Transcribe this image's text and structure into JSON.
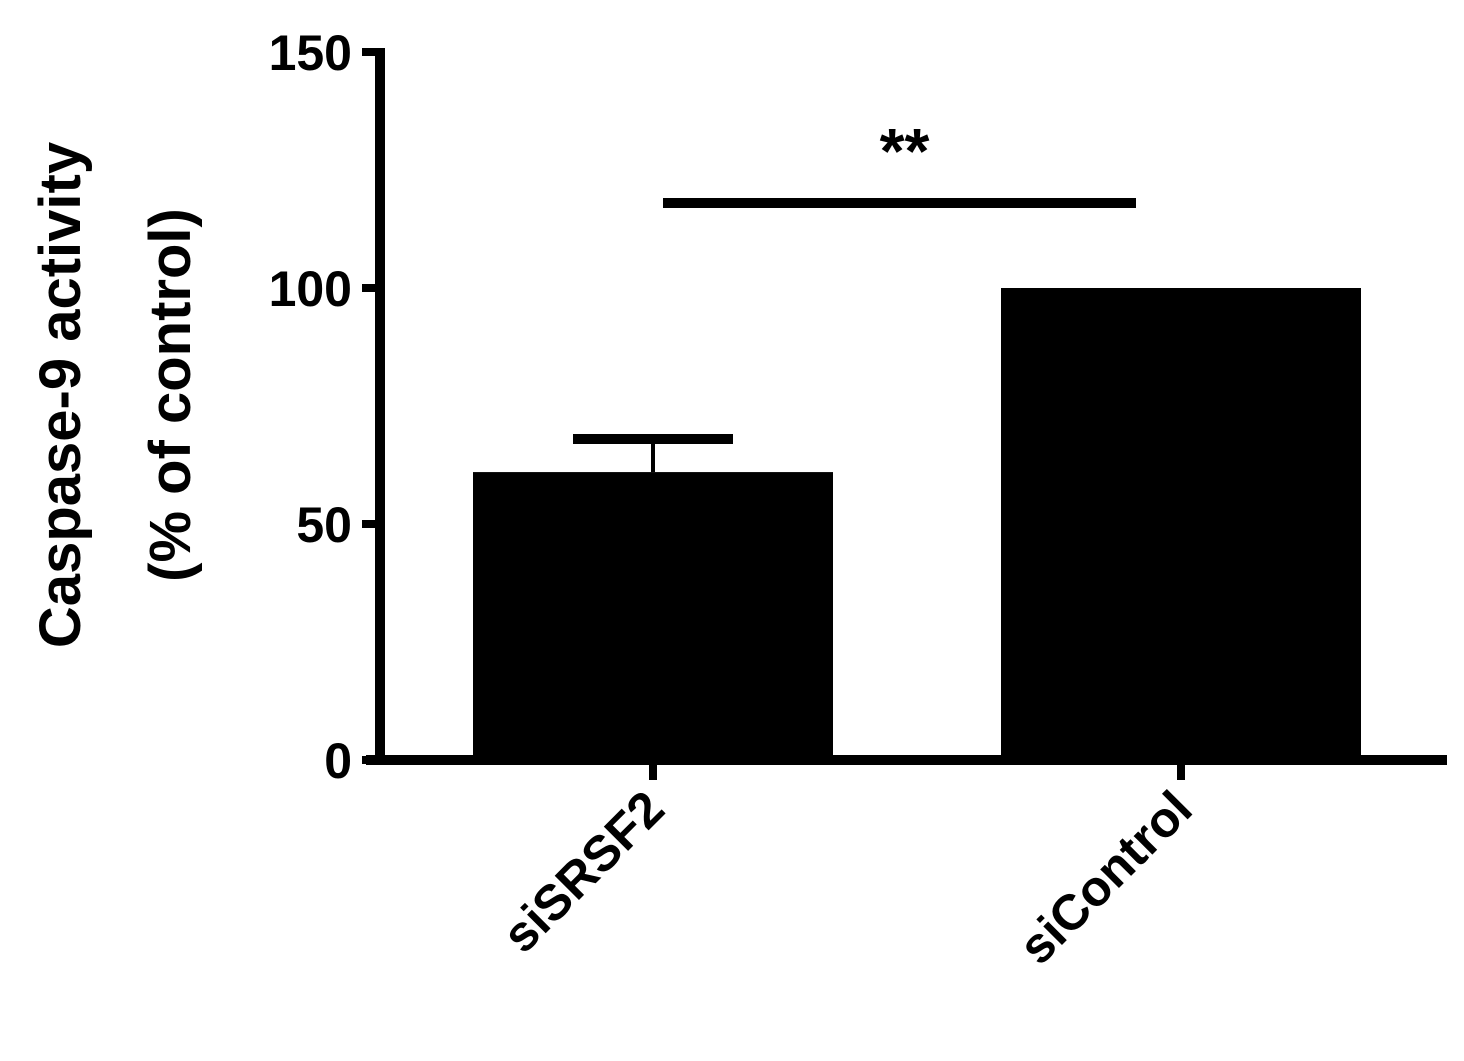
{
  "chart_data": {
    "type": "bar",
    "categories": [
      "siSRSF2",
      "siControl"
    ],
    "values": [
      61,
      100
    ],
    "error_bars": [
      7,
      0
    ],
    "ylabel_lines": [
      "Caspase-9 activity",
      "(% of control)"
    ],
    "xlabel": "",
    "ylim": [
      0,
      150
    ],
    "yticks": [
      0,
      50,
      100,
      150
    ],
    "bar_color": "#000000",
    "grid": false,
    "significance": {
      "label": "**",
      "between": [
        "siSRSF2",
        "siControl"
      ],
      "y": 118
    }
  }
}
